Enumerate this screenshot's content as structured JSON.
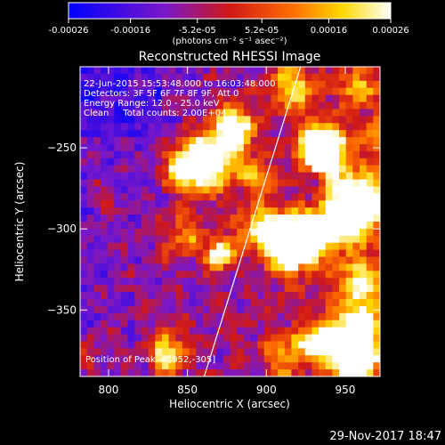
{
  "chart_data": {
    "type": "heatmap",
    "title": "Reconstructed RHESSI Image",
    "xlabel": "Heliocentric X (arcsec)",
    "ylabel": "Heliocentric Y (arcsec)",
    "xlim": [
      782,
      972
    ],
    "ylim": [
      -391,
      -200
    ],
    "x_ticks": [
      800,
      850,
      900,
      950
    ],
    "y_ticks": [
      -250,
      -300,
      -350
    ],
    "colorbar": {
      "ticks": [
        "-0.00026",
        "-0.00016",
        "-5.2e-05",
        "5.2e-05",
        "0.00016",
        "0.00026"
      ],
      "tick_values": [
        -0.00026,
        -0.00016,
        -5.2e-05,
        5.2e-05,
        0.00016,
        0.00026
      ],
      "range": [
        -0.00026,
        0.00026
      ],
      "unit_label": "(photons cm⁻² s⁻¹ asec⁻²)",
      "colors": [
        "#0000ff",
        "#7a18c8",
        "#d01818",
        "#ff7000",
        "#ffd800",
        "#ffffff"
      ]
    },
    "annotations": [
      "22-Jun-2015 15:53:48.000 to 16:03:48.000",
      "Detectors: 3F 5F 6F 7F 8F 9F, Att 0",
      "Energy Range: 12.0 - 25.0 keV",
      "Clean     Total counts: 2.00E+04"
    ],
    "peak_label": "Position of Peak = [952,-305]",
    "peak": [
      952,
      -305
    ],
    "limb_line": [
      [
        860,
        -393
      ],
      [
        922,
        -199
      ]
    ],
    "background_color": "#000000"
  },
  "footer": {
    "timestamp": "29-Nov-2017 18:47"
  }
}
